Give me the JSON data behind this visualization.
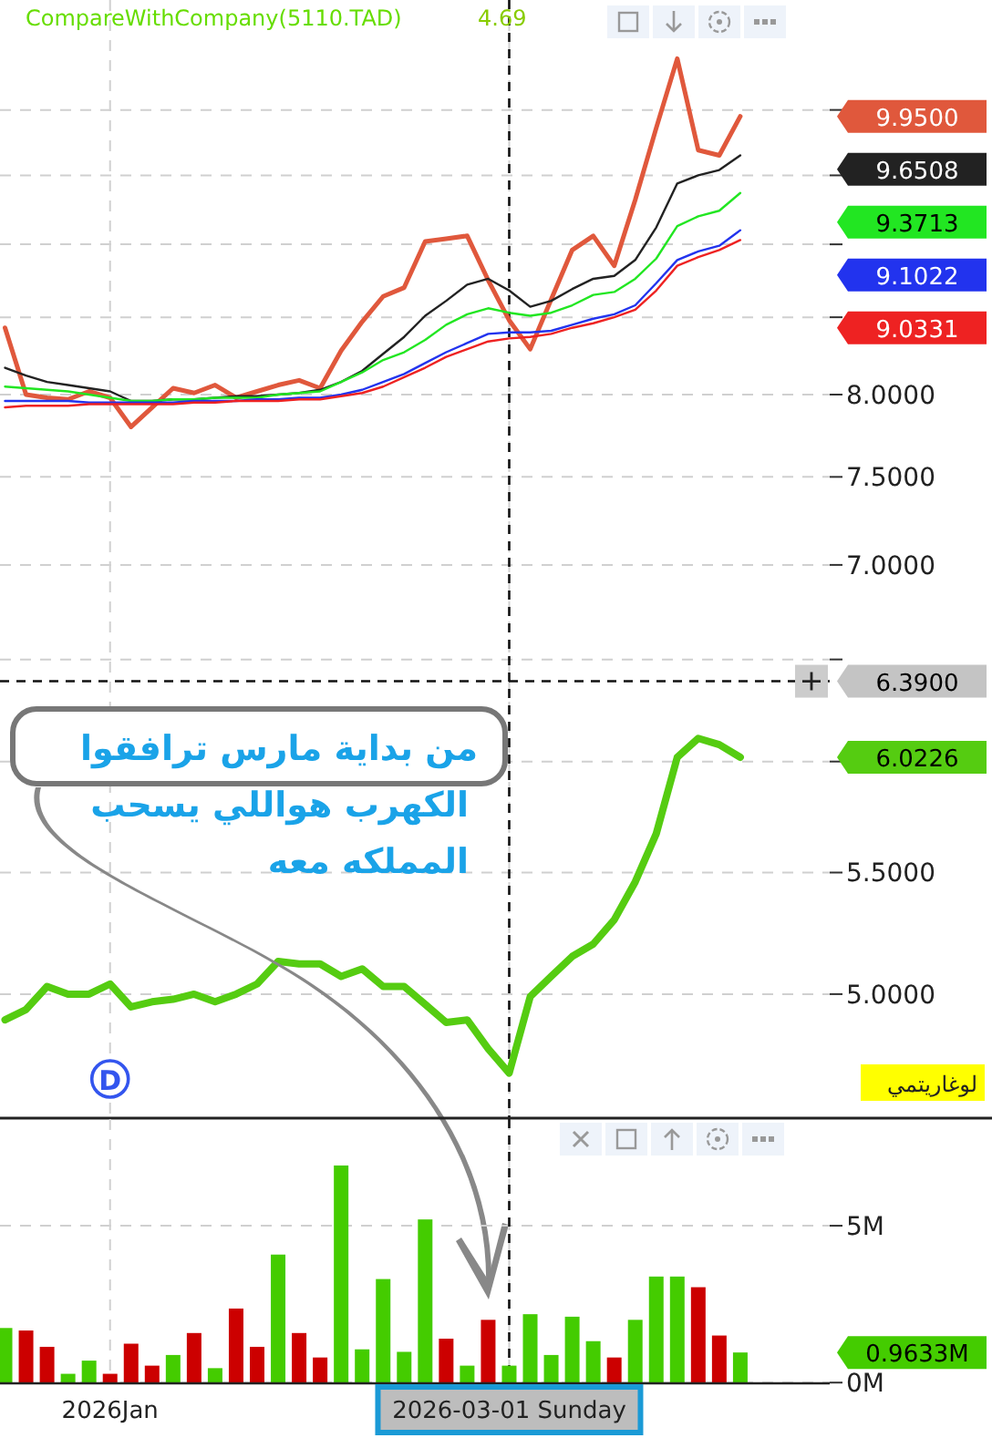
{
  "chart_data": [
    {
      "type": "line",
      "title": "CompareWithCompany(5110.TAD)",
      "subtitle": "4.69",
      "log": true,
      "grid": true,
      "tick_labels": "y",
      "categories": [
        null,
        null,
        null,
        null,
        null,
        "2026Jan",
        null,
        null,
        null,
        null,
        null,
        null,
        null,
        null,
        null,
        null,
        null,
        null,
        null,
        null,
        null,
        null,
        null,
        null,
        "2026-03-01 Sunday",
        null,
        null,
        null,
        null,
        null,
        null,
        null,
        null,
        null,
        null,
        null
      ],
      "ylim": [
        4.54,
        10.9
      ],
      "yticks": [
        {
          "value": 5,
          "label": "5.0000"
        },
        {
          "value": 5.5,
          "label": "5.5000"
        },
        {
          "value": 6,
          "label": null
        },
        {
          "value": 6.5,
          "label": null
        },
        {
          "value": 7,
          "label": "7.0000"
        },
        {
          "value": 7.5,
          "label": "7.5000"
        },
        {
          "value": 8,
          "label": "8.0000"
        },
        {
          "value": 8.5,
          "label": null
        },
        {
          "value": 9,
          "label": null
        },
        {
          "value": 9.5,
          "label": null
        },
        {
          "value": 10,
          "label": null
        }
      ],
      "series": [
        {
          "color": "#e0583c",
          "values": [
            8.43,
            8.0,
            7.98,
            7.97,
            8.02,
            7.98,
            7.8,
            7.92,
            8.04,
            8.01,
            8.06,
            7.98,
            8.02,
            8.06,
            8.09,
            8.04,
            8.28,
            8.47,
            8.64,
            8.7,
            9.02,
            9.04,
            9.06,
            8.75,
            8.48,
            8.29,
            8.62,
            8.96,
            9.06,
            8.85,
            9.32,
            9.86,
            10.41,
            9.69,
            9.65,
            9.95
          ]
        },
        {
          "color": "#222222",
          "values": [
            8.17,
            8.12,
            8.08,
            8.06,
            8.04,
            8.02,
            7.96,
            7.96,
            7.97,
            7.97,
            7.98,
            7.99,
            7.99,
            8.0,
            8.01,
            8.03,
            8.08,
            8.15,
            8.26,
            8.37,
            8.51,
            8.61,
            8.72,
            8.76,
            8.68,
            8.57,
            8.61,
            8.69,
            8.76,
            8.78,
            8.89,
            9.12,
            9.44,
            9.5,
            9.54,
            9.65
          ]
        },
        {
          "color": "#22e622",
          "values": [
            8.05,
            8.04,
            8.03,
            8.02,
            8.0,
            7.98,
            7.96,
            7.96,
            7.97,
            7.97,
            7.98,
            7.98,
            7.98,
            8.0,
            8.01,
            8.02,
            8.08,
            8.14,
            8.22,
            8.27,
            8.35,
            8.45,
            8.52,
            8.56,
            8.53,
            8.51,
            8.53,
            8.58,
            8.65,
            8.67,
            8.76,
            8.9,
            9.13,
            9.2,
            9.24,
            9.37
          ]
        },
        {
          "color": "#2233ee",
          "values": [
            7.96,
            7.96,
            7.96,
            7.96,
            7.95,
            7.95,
            7.95,
            7.95,
            7.95,
            7.96,
            7.96,
            7.96,
            7.97,
            7.97,
            7.98,
            7.98,
            8.0,
            8.03,
            8.08,
            8.13,
            8.2,
            8.27,
            8.33,
            8.39,
            8.4,
            8.4,
            8.41,
            8.45,
            8.49,
            8.52,
            8.58,
            8.73,
            8.89,
            8.95,
            8.99,
            9.1
          ]
        },
        {
          "color": "#ee2222",
          "values": [
            7.92,
            7.93,
            7.93,
            7.93,
            7.94,
            7.94,
            7.94,
            7.94,
            7.94,
            7.95,
            7.95,
            7.96,
            7.96,
            7.96,
            7.97,
            7.97,
            7.99,
            8.01,
            8.05,
            8.11,
            8.17,
            8.24,
            8.29,
            8.34,
            8.36,
            8.37,
            8.39,
            8.43,
            8.46,
            8.5,
            8.55,
            8.68,
            8.85,
            8.91,
            8.96,
            9.03
          ]
        },
        {
          "color": "#55cc11",
          "values": [
            4.9,
            4.94,
            5.03,
            5.0,
            5.0,
            5.04,
            4.95,
            4.97,
            4.98,
            5.0,
            4.97,
            5.0,
            5.04,
            5.13,
            5.12,
            5.12,
            5.07,
            5.1,
            5.03,
            5.03,
            4.96,
            4.89,
            4.9,
            4.79,
            4.7,
            4.99,
            5.07,
            5.15,
            5.2,
            5.3,
            5.46,
            5.67,
            6.02,
            6.11,
            6.08,
            6.02
          ]
        }
      ],
      "ref_lines": [
        {
          "axis": "x",
          "value": "2026-03-01 Sunday"
        },
        {
          "axis": "y",
          "value": 6.39,
          "label": "6.3900"
        }
      ],
      "annotations": [
        {
          "text": "D",
          "x": "2026Jan"
        },
        "من بداية مارس ترافقوا\nالكهرب هواللي يسحب\nالمملكه معه",
        "لوغاريتمي",
        "9.9500",
        "9.6508",
        "9.3713",
        "9.1022",
        "9.0331",
        "6.0226"
      ]
    },
    {
      "type": "bar",
      "grid": true,
      "categories": [
        null,
        null,
        null,
        null,
        null,
        "2026Jan",
        null,
        null,
        null,
        null,
        null,
        null,
        null,
        null,
        null,
        null,
        null,
        null,
        null,
        null,
        null,
        null,
        null,
        null,
        "2026-03-01 Sunday",
        null,
        null,
        null,
        null,
        null,
        null,
        null,
        null,
        null,
        null,
        null
      ],
      "values": [
        1.74,
        1.66,
        1.14,
        0.28,
        0.7,
        0.28,
        1.24,
        0.54,
        0.88,
        1.58,
        0.46,
        2.36,
        1.14,
        4.08,
        1.58,
        0.8,
        6.92,
        1.06,
        3.3,
        0.98,
        5.2,
        1.4,
        0.54,
        2.0,
        0.54,
        2.18,
        0.88,
        2.1,
        1.32,
        0.8,
        2.0,
        3.38,
        3.38,
        3.04,
        1.5,
        0.96
      ],
      "colors": [
        "#44cc00",
        "#cc0000",
        "#cc0000",
        "#44cc00",
        "#44cc00",
        "#cc0000",
        "#cc0000",
        "#cc0000",
        "#44cc00",
        "#cc0000",
        "#44cc00",
        "#cc0000",
        "#cc0000",
        "#44cc00",
        "#cc0000",
        "#cc0000",
        "#44cc00",
        "#44cc00",
        "#44cc00",
        "#44cc00",
        "#44cc00",
        "#cc0000",
        "#44cc00",
        "#cc0000",
        "#44cc00",
        "#44cc00",
        "#44cc00",
        "#44cc00",
        "#44cc00",
        "#cc0000",
        "#44cc00",
        "#44cc00",
        "#44cc00",
        "#cc0000",
        "#cc0000",
        "#44cc00"
      ],
      "ylim": [
        0,
        8.4
      ],
      "yticks": [
        {
          "value": 0,
          "label": "0M"
        },
        {
          "value": 5,
          "label": "5M"
        }
      ],
      "ref_lines": [
        {
          "axis": "x",
          "value": "2026-03-01 Sunday"
        }
      ],
      "annotations": [
        "0.9633M"
      ]
    }
  ]
}
